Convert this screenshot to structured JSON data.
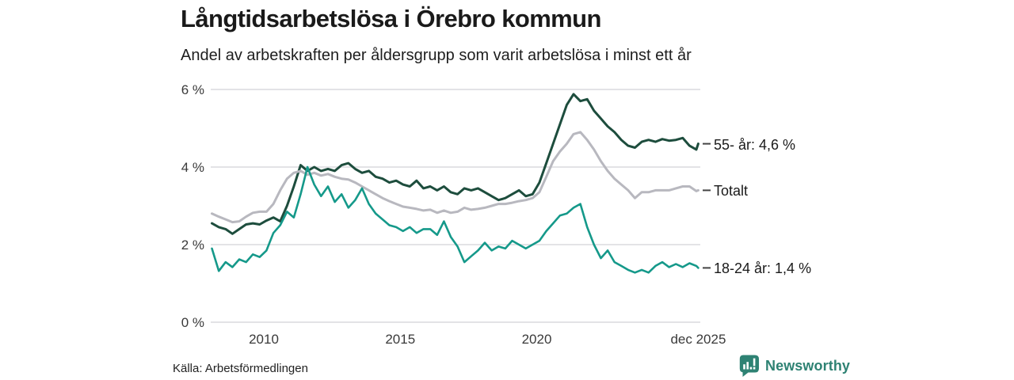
{
  "header": {
    "title": "Långtidsarbetslösa i Örebro kommun",
    "subtitle": "Andel av arbetskraften per åldersgrupp som varit arbetslösa i minst ett år"
  },
  "chart_data": {
    "type": "line",
    "title": "Långtidsarbetslösa i Örebro kommun",
    "subtitle": "Andel av arbetskraften per åldersgrupp som varit arbetslösa i minst ett år",
    "xlabel": "",
    "ylabel": "",
    "ylim": [
      0,
      6
    ],
    "xlim": [
      2008.05,
      2026.0
    ],
    "grid": "horizontal",
    "legend_position": "right-end-labels",
    "y_ticks": [
      "0 %",
      "2 %",
      "4 %",
      "6 %"
    ],
    "y_tick_values": [
      0,
      2,
      4,
      6
    ],
    "x_ticks": [
      {
        "label": "2010",
        "value": 2010
      },
      {
        "label": "2015",
        "value": 2015
      },
      {
        "label": "2020",
        "value": 2020
      },
      {
        "label": "dec 2025",
        "value": 2025.92
      }
    ],
    "x": [
      2008.1,
      2008.35,
      2008.6,
      2008.85,
      2009.1,
      2009.35,
      2009.6,
      2009.85,
      2010.1,
      2010.35,
      2010.6,
      2010.85,
      2011.1,
      2011.35,
      2011.6,
      2011.85,
      2012.1,
      2012.35,
      2012.6,
      2012.85,
      2013.1,
      2013.35,
      2013.6,
      2013.85,
      2014.1,
      2014.35,
      2014.6,
      2014.85,
      2015.1,
      2015.35,
      2015.6,
      2015.85,
      2016.1,
      2016.35,
      2016.6,
      2016.85,
      2017.1,
      2017.35,
      2017.6,
      2017.85,
      2018.1,
      2018.35,
      2018.6,
      2018.85,
      2019.1,
      2019.35,
      2019.6,
      2019.85,
      2020.1,
      2020.35,
      2020.6,
      2020.85,
      2021.1,
      2021.35,
      2021.6,
      2021.85,
      2022.1,
      2022.35,
      2022.6,
      2022.85,
      2023.1,
      2023.35,
      2023.6,
      2023.85,
      2024.1,
      2024.35,
      2024.6,
      2024.85,
      2025.1,
      2025.35,
      2025.6,
      2025.85,
      2025.92
    ],
    "series": [
      {
        "name": "55- år",
        "end_label": "55- år: 4,6 %",
        "last_value_label": "4,6 %",
        "color": "#1d4d3d",
        "stroke_width": 3,
        "values": [
          2.55,
          2.45,
          2.4,
          2.28,
          2.4,
          2.52,
          2.55,
          2.52,
          2.62,
          2.7,
          2.6,
          3.0,
          3.5,
          4.05,
          3.9,
          4.0,
          3.9,
          3.95,
          3.9,
          4.05,
          4.1,
          3.95,
          3.85,
          3.9,
          3.75,
          3.7,
          3.6,
          3.65,
          3.55,
          3.5,
          3.65,
          3.45,
          3.5,
          3.4,
          3.5,
          3.35,
          3.3,
          3.45,
          3.4,
          3.45,
          3.35,
          3.25,
          3.15,
          3.2,
          3.3,
          3.4,
          3.25,
          3.3,
          3.6,
          4.1,
          4.6,
          5.1,
          5.6,
          5.88,
          5.7,
          5.75,
          5.45,
          5.25,
          5.05,
          4.9,
          4.7,
          4.55,
          4.5,
          4.65,
          4.7,
          4.65,
          4.72,
          4.68,
          4.7,
          4.75,
          4.55,
          4.45,
          4.6
        ]
      },
      {
        "name": "Totalt",
        "end_label": "Totalt",
        "last_value_label": "",
        "color": "#b8b8bf",
        "stroke_width": 3,
        "values": [
          2.8,
          2.72,
          2.65,
          2.58,
          2.6,
          2.72,
          2.82,
          2.85,
          2.85,
          3.05,
          3.4,
          3.7,
          3.85,
          3.9,
          3.8,
          3.85,
          3.78,
          3.82,
          3.75,
          3.7,
          3.68,
          3.6,
          3.5,
          3.4,
          3.3,
          3.2,
          3.12,
          3.05,
          2.98,
          2.95,
          2.92,
          2.88,
          2.9,
          2.82,
          2.88,
          2.82,
          2.85,
          2.95,
          2.9,
          2.92,
          2.95,
          3.0,
          3.05,
          3.05,
          3.08,
          3.12,
          3.15,
          3.2,
          3.35,
          3.75,
          4.15,
          4.4,
          4.6,
          4.85,
          4.9,
          4.7,
          4.45,
          4.15,
          3.9,
          3.7,
          3.55,
          3.4,
          3.2,
          3.35,
          3.35,
          3.4,
          3.4,
          3.4,
          3.45,
          3.5,
          3.5,
          3.38,
          3.4
        ]
      },
      {
        "name": "18-24 år",
        "end_label": "18-24 år: 1,4 %",
        "last_value_label": "1,4 %",
        "color": "#15998a",
        "stroke_width": 2.6,
        "values": [
          1.9,
          1.32,
          1.55,
          1.42,
          1.62,
          1.55,
          1.75,
          1.68,
          1.85,
          2.3,
          2.5,
          2.85,
          2.7,
          3.3,
          4.0,
          3.55,
          3.25,
          3.5,
          3.1,
          3.3,
          2.95,
          3.15,
          3.45,
          3.05,
          2.8,
          2.65,
          2.5,
          2.45,
          2.35,
          2.45,
          2.3,
          2.4,
          2.4,
          2.25,
          2.6,
          2.2,
          1.95,
          1.55,
          1.7,
          1.85,
          2.05,
          1.85,
          1.95,
          1.9,
          2.1,
          2.0,
          1.9,
          2.0,
          2.1,
          2.35,
          2.55,
          2.75,
          2.8,
          2.95,
          3.05,
          2.45,
          2.0,
          1.65,
          1.85,
          1.55,
          1.45,
          1.35,
          1.28,
          1.35,
          1.28,
          1.45,
          1.55,
          1.42,
          1.5,
          1.42,
          1.52,
          1.45,
          1.4
        ]
      }
    ]
  },
  "footer": {
    "source": "Källa: Arbetsförmedlingen",
    "brand": "Newsworthy"
  },
  "colors": {
    "background": "#ffffff",
    "title_text": "#1a1a1a",
    "tick_text": "#3a3a3a",
    "gridline": "#e3e3e6",
    "connector": "#444444",
    "series_55": "#1d4d3d",
    "series_total": "#b8b8bf",
    "series_18_24": "#15998a",
    "brand_teal": "#2e8273"
  }
}
